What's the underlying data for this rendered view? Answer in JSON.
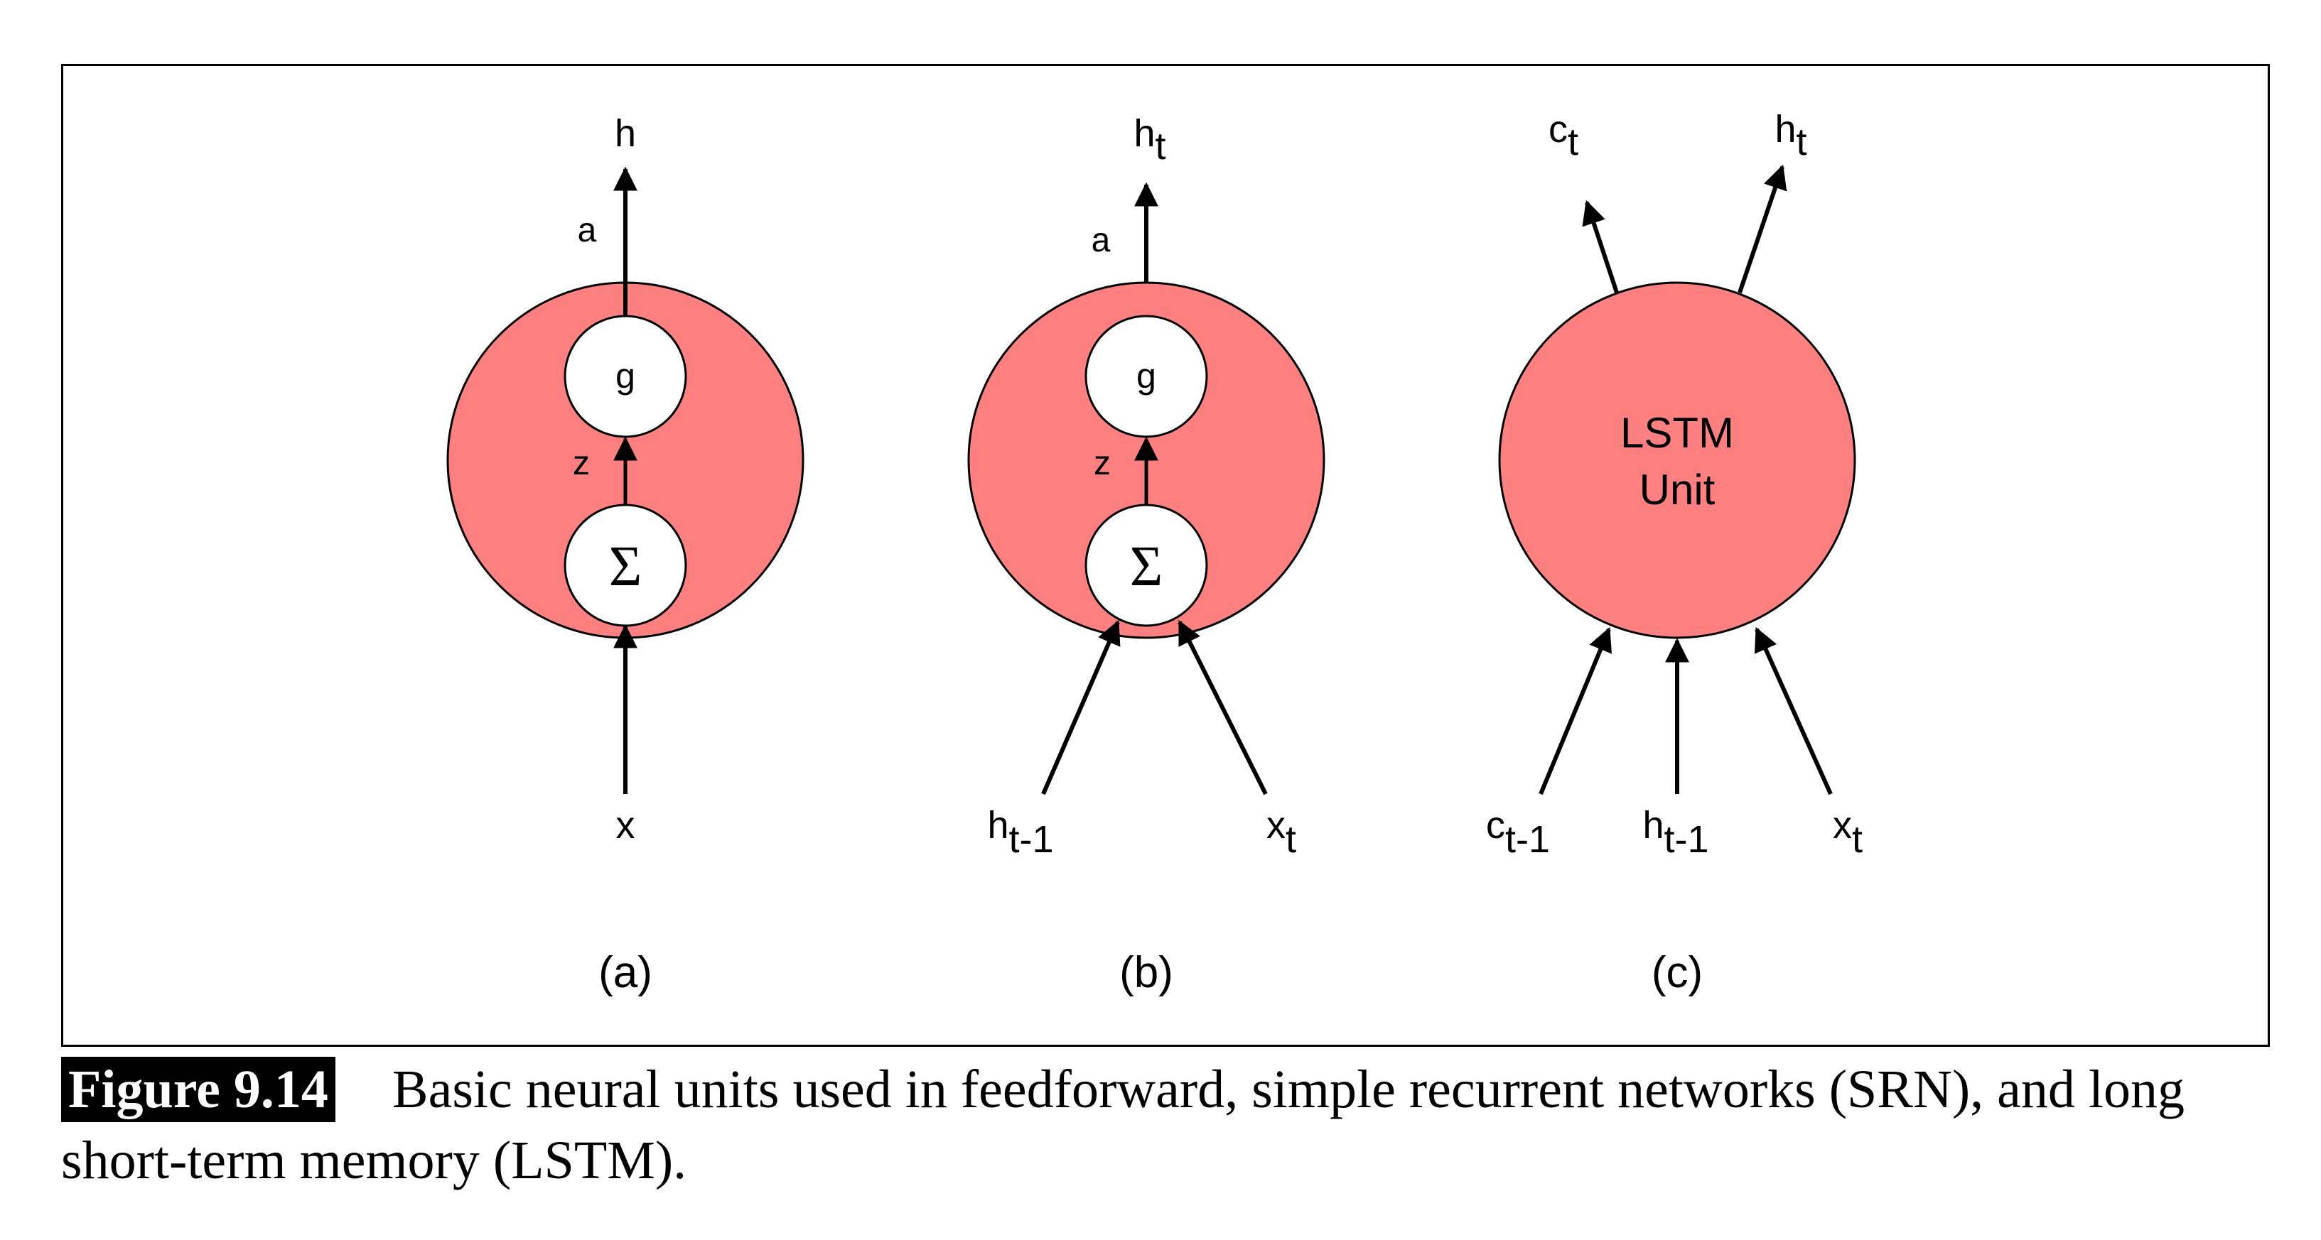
{
  "panels": [
    {
      "id": "a",
      "caption": "(a)",
      "top_node": "g",
      "bottom_node": "Σ",
      "output_label": "h",
      "activation_label": "a",
      "sum_label": "z",
      "input_labels": [
        "x"
      ]
    },
    {
      "id": "b",
      "caption": "(b)",
      "top_node": "g",
      "bottom_node": "Σ",
      "output_label": "h",
      "output_sub": "t",
      "activation_label": "a",
      "sum_label": "z",
      "input_left": {
        "base": "h",
        "sub": "t-1"
      },
      "input_right": {
        "base": "x",
        "sub": "t"
      }
    },
    {
      "id": "c",
      "caption": "(c)",
      "unit_line1": "LSTM",
      "unit_line2": "Unit",
      "output_left": {
        "base": "c",
        "sub": "t"
      },
      "output_right": {
        "base": "h",
        "sub": "t"
      },
      "input_left": {
        "base": "c",
        "sub": "t-1"
      },
      "input_mid": {
        "base": "h",
        "sub": "t-1"
      },
      "input_right": {
        "base": "x",
        "sub": "t"
      }
    }
  ],
  "caption": {
    "figure_label": "Figure 9.14",
    "text": "Basic neural units used in feedforward, simple recurrent networks (SRN), and long short-term memory (LSTM)."
  },
  "colors": {
    "unit_fill": "#FF8080",
    "node_fill": "#FFFFFF",
    "stroke": "#000000"
  }
}
